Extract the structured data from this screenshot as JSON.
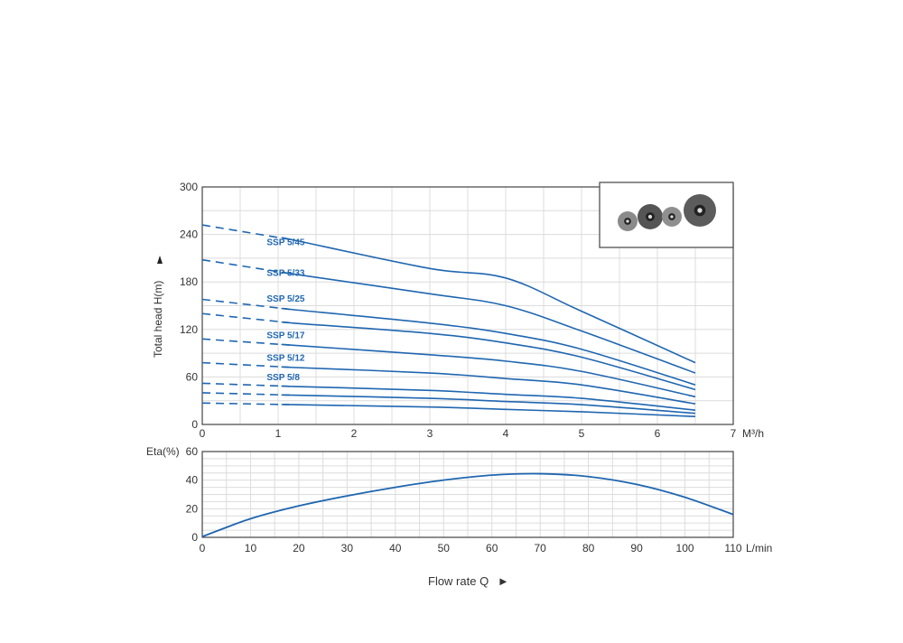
{
  "chart_data": [
    {
      "type": "line",
      "title": "",
      "xlabel": "M³/h",
      "ylabel": "Total head H(m)",
      "xlim": [
        0,
        7
      ],
      "ylim": [
        0,
        300
      ],
      "xticks": [
        "0",
        "1",
        "2",
        "3",
        "4",
        "5",
        "6",
        "7"
      ],
      "yticks": [
        "0",
        "60",
        "120",
        "180",
        "240",
        "300"
      ],
      "grid": true,
      "x": [
        0,
        1.2,
        3,
        4,
        5,
        6.5
      ],
      "dashed_until_x": 1.15,
      "series": [
        {
          "name": "SSP 5/45",
          "values": [
            252,
            233,
            197,
            185,
            143,
            78
          ]
        },
        {
          "name": "SSP 5/33",
          "values": [
            208,
            190,
            165,
            150,
            118,
            65
          ]
        },
        {
          "name": "SSP 5/25",
          "values": [
            158,
            145,
            128,
            115,
            95,
            50
          ]
        },
        {
          "name": "",
          "values": [
            140,
            128,
            115,
            103,
            85,
            44
          ]
        },
        {
          "name": "SSP 5/17",
          "values": [
            108,
            100,
            88,
            80,
            67,
            35
          ]
        },
        {
          "name": "SSP 5/12",
          "values": [
            78,
            72,
            65,
            58,
            50,
            26
          ]
        },
        {
          "name": "SSP 5/8",
          "values": [
            52,
            48,
            43,
            38,
            33,
            18
          ]
        },
        {
          "name": "",
          "values": [
            40,
            37,
            33,
            29,
            25,
            14
          ]
        },
        {
          "name": "",
          "values": [
            27,
            25,
            22,
            19,
            16,
            10
          ]
        }
      ],
      "line_color": "#1f66b0"
    },
    {
      "type": "line",
      "xlabel": "L/min",
      "ylabel": "Eta(%)",
      "xlim": [
        0,
        110
      ],
      "ylim": [
        0,
        60
      ],
      "xticks": [
        "0",
        "10",
        "20",
        "30",
        "40",
        "50",
        "60",
        "70",
        "80",
        "90",
        "100",
        "110"
      ],
      "yticks": [
        "0",
        "20",
        "40",
        "60"
      ],
      "grid": true,
      "x": [
        0,
        10,
        20,
        30,
        40,
        50,
        60,
        70,
        80,
        90,
        100,
        110
      ],
      "series": [
        {
          "name": "Eta",
          "values": [
            0.5,
            13,
            22,
            29,
            35,
            40,
            43.5,
            44.5,
            42.5,
            37,
            28,
            16
          ]
        }
      ],
      "line_color": "#1f66b0"
    }
  ],
  "footer": {
    "flow_label": "Flow rate Q"
  }
}
